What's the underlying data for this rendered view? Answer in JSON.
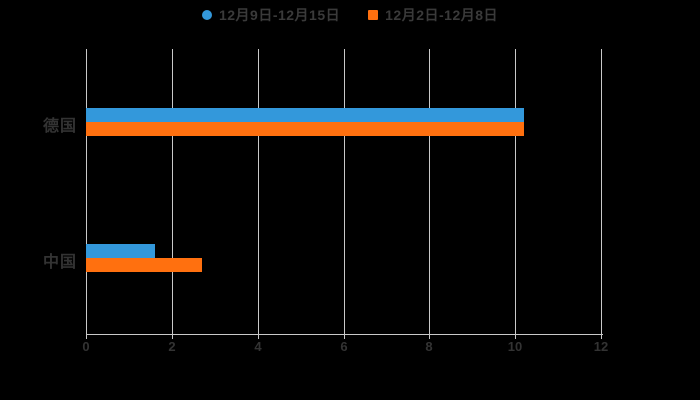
{
  "legend": {
    "items": [
      {
        "label": "12月9日-12月15日",
        "marker": "circle",
        "color": "#3398db"
      },
      {
        "label": "12月2日-12月8日",
        "marker": "square",
        "color": "#ff700f"
      }
    ]
  },
  "chart_data": {
    "type": "bar",
    "orientation": "horizontal",
    "title": "",
    "xlabel": "",
    "ylabel": "",
    "categories": [
      "德国",
      "中国"
    ],
    "series": [
      {
        "name": "12月9日-12月15日",
        "color": "#3398db",
        "values": [
          10.2,
          1.6
        ]
      },
      {
        "name": "12月2日-12月8日",
        "color": "#ff700f",
        "values": [
          10.2,
          2.7
        ]
      }
    ],
    "xlim": [
      0,
      12
    ],
    "x_ticks": [
      0,
      2,
      4,
      6,
      8,
      10,
      12
    ],
    "grid": "vertical-only",
    "legend_position": "top-center"
  },
  "style": {
    "background": "#000000",
    "grid_color": "#c9c9c9",
    "axis_color": "#c9c9c9",
    "text_color": "#333333"
  }
}
